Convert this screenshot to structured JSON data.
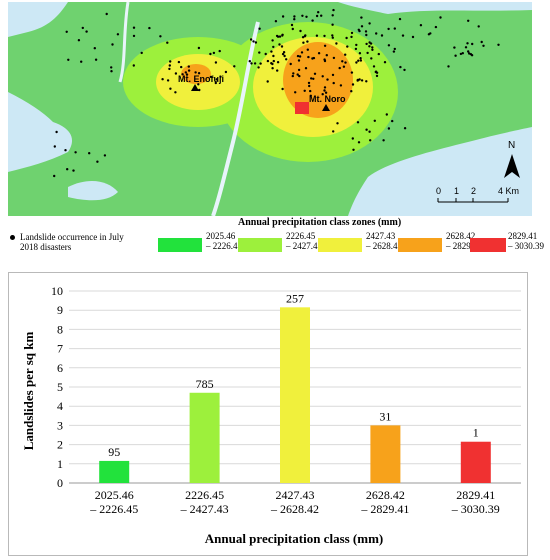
{
  "map": {
    "peaks": [
      {
        "label": "Mt. Enofuji"
      },
      {
        "label": "Mt. Noro"
      }
    ],
    "north_label": "N",
    "scale": {
      "ticks": [
        "0",
        "1",
        "2",
        "4"
      ],
      "unit_label": "4 Km"
    }
  },
  "legend": {
    "title": "Annual precipitation class zones (mm)",
    "landslide_note": "Landslide occurrence in July 2018 disasters",
    "classes": [
      {
        "range_line1": "2025.46",
        "range_line2": "– 2226.45",
        "color": "#22e23c"
      },
      {
        "range_line1": "2226.45",
        "range_line2": "– 2427.43",
        "color": "#9df03c"
      },
      {
        "range_line1": "2427.43",
        "range_line2": "– 2628.42",
        "color": "#f0f03c"
      },
      {
        "range_line1": "2628.42",
        "range_line2": "– 2829.41",
        "color": "#f7a21b"
      },
      {
        "range_line1": "2829.41",
        "range_line2": "– 3030.39",
        "color": "#f03131"
      }
    ]
  },
  "chart_data": {
    "type": "bar",
    "title": "",
    "xlabel": "Annual precipitation class (mm)",
    "ylabel": "Landslides per sq km",
    "ylim": [
      0,
      10
    ],
    "yticks": [
      0,
      1,
      2,
      3,
      4,
      5,
      6,
      7,
      8,
      9,
      10
    ],
    "grid": true,
    "categories": [
      {
        "line1": "2025.46",
        "line2": "– 2226.45"
      },
      {
        "line1": "2226.45",
        "line2": "– 2427.43"
      },
      {
        "line1": "2427.43",
        "line2": "– 2628.42"
      },
      {
        "line1": "2628.42",
        "line2": "– 2829.41"
      },
      {
        "line1": "2829.41",
        "line2": "– 3030.39"
      }
    ],
    "values": [
      1.15,
      4.7,
      9.15,
      3.0,
      2.15
    ],
    "data_labels": [
      "95",
      "785",
      "257",
      "31",
      "1"
    ],
    "colors": [
      "#22e23c",
      "#9df03c",
      "#f0f03c",
      "#f7a21b",
      "#f03131"
    ]
  }
}
